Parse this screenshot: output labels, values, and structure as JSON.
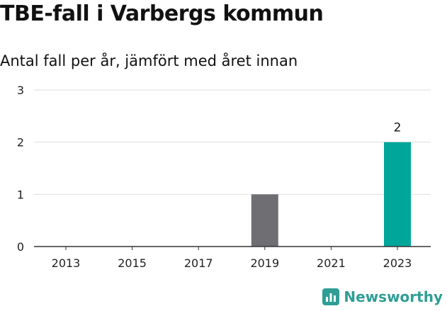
{
  "chart_data": {
    "type": "bar",
    "title": "TBE-fall i Varbergs kommun",
    "subtitle": "Antal fall per år, jämfört med året innan",
    "xlabel": "",
    "ylabel": "",
    "ylim": [
      0,
      3
    ],
    "yticks": [
      0,
      1,
      2,
      3
    ],
    "grid": true,
    "x": [
      2013,
      2014,
      2015,
      2016,
      2017,
      2018,
      2019,
      2020,
      2021,
      2022,
      2023
    ],
    "xticks": [
      2013,
      2015,
      2017,
      2019,
      2021,
      2023
    ],
    "values": [
      0,
      0,
      0,
      0,
      0,
      0,
      1,
      0,
      0,
      0,
      2
    ],
    "highlight_index": 10,
    "data_labels": [
      {
        "x": 2023,
        "text": "2"
      }
    ],
    "colors": {
      "bar": "#6f6e73",
      "highlight": "#00a69a",
      "grid": "#dedede",
      "axis": "#333333"
    }
  },
  "brand": {
    "name": "Newsworthy",
    "icon": "bar-chart-logo-icon",
    "color": "#2f9e95"
  }
}
